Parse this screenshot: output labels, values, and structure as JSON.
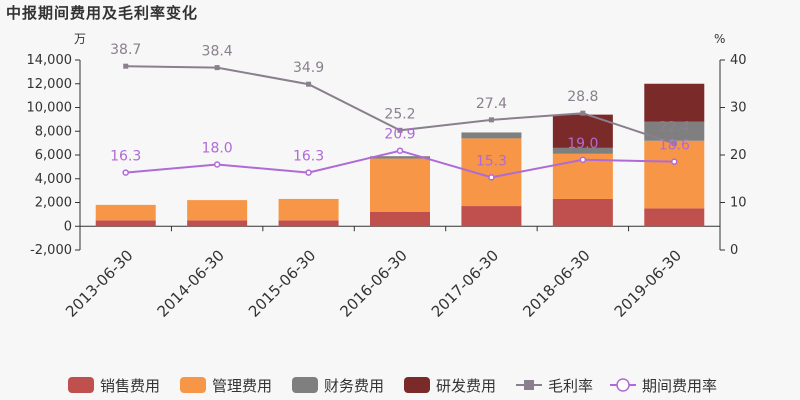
{
  "title": "中报期间费用及毛利率变化",
  "chart_data": {
    "type": "bar+line",
    "categories": [
      "2013-06-30",
      "2014-06-30",
      "2015-06-30",
      "2016-06-30",
      "2017-06-30",
      "2018-06-30",
      "2019-06-30"
    ],
    "left_axis": {
      "unit": "万",
      "ylim": [
        -2000,
        14000
      ],
      "ticks": [
        "-2,000",
        "0",
        "2,000",
        "4,000",
        "6,000",
        "8,000",
        "10,000",
        "12,000",
        "14,000"
      ]
    },
    "right_axis": {
      "unit": "%",
      "ylim": [
        0,
        40
      ],
      "ticks": [
        "0",
        "10",
        "20",
        "30",
        "40"
      ]
    },
    "stacked_series": [
      {
        "name": "销售费用",
        "color": "#c0504d",
        "values": [
          500,
          500,
          500,
          1200,
          1700,
          2300,
          1500
        ]
      },
      {
        "name": "管理费用",
        "color": "#f79646",
        "values": [
          1300,
          1700,
          1800,
          4500,
          5700,
          3800,
          5700
        ]
      },
      {
        "name": "财务费用",
        "color": "#7f7f7f",
        "values": [
          0,
          0,
          0,
          200,
          500,
          500,
          1600
        ]
      },
      {
        "name": "研发费用",
        "color": "#7b2a2a",
        "values": [
          0,
          0,
          0,
          0,
          0,
          2800,
          3200
        ]
      }
    ],
    "line_series": [
      {
        "name": "毛利率",
        "color": "#8a7f8d",
        "values": [
          38.7,
          38.4,
          34.9,
          25.2,
          27.4,
          28.8,
          22.4
        ],
        "labels": [
          "38.7",
          "38.4",
          "34.9",
          "25.2",
          "27.4",
          "28.8",
          "22.4"
        ]
      },
      {
        "name": "期间费用率",
        "color": "#b06ad6",
        "values": [
          16.3,
          18.0,
          16.3,
          20.9,
          15.3,
          19.0,
          18.6
        ],
        "labels": [
          "16.3",
          "18.0",
          "16.3",
          "20.9",
          "15.3",
          "19.0",
          "18.6"
        ]
      }
    ],
    "legend": [
      "销售费用",
      "管理费用",
      "财务费用",
      "研发费用",
      "毛利率",
      "期间费用率"
    ],
    "legend_position": "bottom"
  }
}
